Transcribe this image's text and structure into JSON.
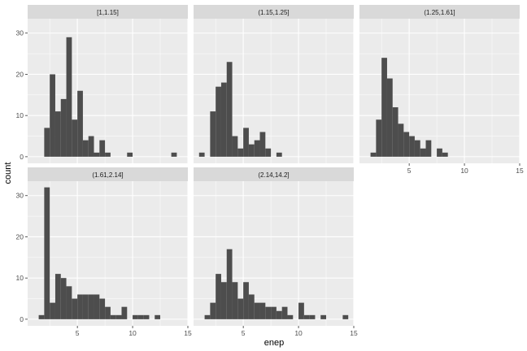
{
  "chart_data": {
    "type": "bar",
    "xlabel": "enep",
    "ylabel": "count",
    "xlim": [
      0.5,
      15
    ],
    "ylim": [
      -1.6,
      33.5
    ],
    "x_ticks": [
      5,
      10,
      15
    ],
    "y_ticks": [
      0,
      10,
      20,
      30
    ],
    "bin_width": 0.5,
    "colors": {
      "bar": "#4d4d4d",
      "panel": "#ebebeb",
      "strip": "#d9d9d9",
      "grid": "#ffffff"
    },
    "panels": [
      {
        "label": "[1,1.15]",
        "bins": [
          {
            "x": 2.25,
            "y": 7
          },
          {
            "x": 2.75,
            "y": 20
          },
          {
            "x": 3.25,
            "y": 11
          },
          {
            "x": 3.75,
            "y": 14
          },
          {
            "x": 4.25,
            "y": 29
          },
          {
            "x": 4.75,
            "y": 9
          },
          {
            "x": 5.25,
            "y": 16
          },
          {
            "x": 5.75,
            "y": 4
          },
          {
            "x": 6.25,
            "y": 5
          },
          {
            "x": 6.75,
            "y": 1
          },
          {
            "x": 7.25,
            "y": 4
          },
          {
            "x": 7.75,
            "y": 1
          },
          {
            "x": 9.75,
            "y": 1
          },
          {
            "x": 13.75,
            "y": 1
          }
        ]
      },
      {
        "label": "(1.15,1.25]",
        "bins": [
          {
            "x": 1.25,
            "y": 1
          },
          {
            "x": 2.25,
            "y": 11
          },
          {
            "x": 2.75,
            "y": 17
          },
          {
            "x": 3.25,
            "y": 18
          },
          {
            "x": 3.75,
            "y": 23
          },
          {
            "x": 4.25,
            "y": 5
          },
          {
            "x": 4.75,
            "y": 2
          },
          {
            "x": 5.25,
            "y": 7
          },
          {
            "x": 5.75,
            "y": 3
          },
          {
            "x": 6.25,
            "y": 4
          },
          {
            "x": 6.75,
            "y": 6
          },
          {
            "x": 7.25,
            "y": 2
          },
          {
            "x": 8.25,
            "y": 1
          }
        ]
      },
      {
        "label": "(1.25,1.61]",
        "bins": [
          {
            "x": 1.75,
            "y": 1
          },
          {
            "x": 2.25,
            "y": 9
          },
          {
            "x": 2.75,
            "y": 24
          },
          {
            "x": 3.25,
            "y": 19
          },
          {
            "x": 3.75,
            "y": 12
          },
          {
            "x": 4.25,
            "y": 8
          },
          {
            "x": 4.75,
            "y": 6
          },
          {
            "x": 5.25,
            "y": 5
          },
          {
            "x": 5.75,
            "y": 4
          },
          {
            "x": 6.25,
            "y": 2
          },
          {
            "x": 6.75,
            "y": 4
          },
          {
            "x": 7.75,
            "y": 2
          },
          {
            "x": 8.25,
            "y": 1
          }
        ]
      },
      {
        "label": "(1.61,2.14]",
        "bins": [
          {
            "x": 1.75,
            "y": 1
          },
          {
            "x": 2.25,
            "y": 32
          },
          {
            "x": 2.75,
            "y": 4
          },
          {
            "x": 3.25,
            "y": 11
          },
          {
            "x": 3.75,
            "y": 10
          },
          {
            "x": 4.25,
            "y": 8
          },
          {
            "x": 4.75,
            "y": 5
          },
          {
            "x": 5.25,
            "y": 6
          },
          {
            "x": 5.75,
            "y": 6
          },
          {
            "x": 6.25,
            "y": 6
          },
          {
            "x": 6.75,
            "y": 6
          },
          {
            "x": 7.25,
            "y": 5
          },
          {
            "x": 7.75,
            "y": 3
          },
          {
            "x": 8.25,
            "y": 1
          },
          {
            "x": 8.75,
            "y": 1
          },
          {
            "x": 9.25,
            "y": 3
          },
          {
            "x": 10.25,
            "y": 1
          },
          {
            "x": 10.75,
            "y": 1
          },
          {
            "x": 11.25,
            "y": 1
          },
          {
            "x": 12.25,
            "y": 1
          }
        ]
      },
      {
        "label": "(2.14,14.2]",
        "bins": [
          {
            "x": 1.75,
            "y": 1
          },
          {
            "x": 2.25,
            "y": 4
          },
          {
            "x": 2.75,
            "y": 11
          },
          {
            "x": 3.25,
            "y": 9
          },
          {
            "x": 3.75,
            "y": 17
          },
          {
            "x": 4.25,
            "y": 9
          },
          {
            "x": 4.75,
            "y": 5
          },
          {
            "x": 5.25,
            "y": 9
          },
          {
            "x": 5.75,
            "y": 6
          },
          {
            "x": 6.25,
            "y": 4
          },
          {
            "x": 6.75,
            "y": 4
          },
          {
            "x": 7.25,
            "y": 3
          },
          {
            "x": 7.75,
            "y": 3
          },
          {
            "x": 8.25,
            "y": 2
          },
          {
            "x": 8.75,
            "y": 3
          },
          {
            "x": 9.25,
            "y": 1
          },
          {
            "x": 10.25,
            "y": 4
          },
          {
            "x": 10.75,
            "y": 1
          },
          {
            "x": 11.25,
            "y": 1
          },
          {
            "x": 12.25,
            "y": 1
          },
          {
            "x": 14.25,
            "y": 1
          }
        ]
      }
    ]
  }
}
